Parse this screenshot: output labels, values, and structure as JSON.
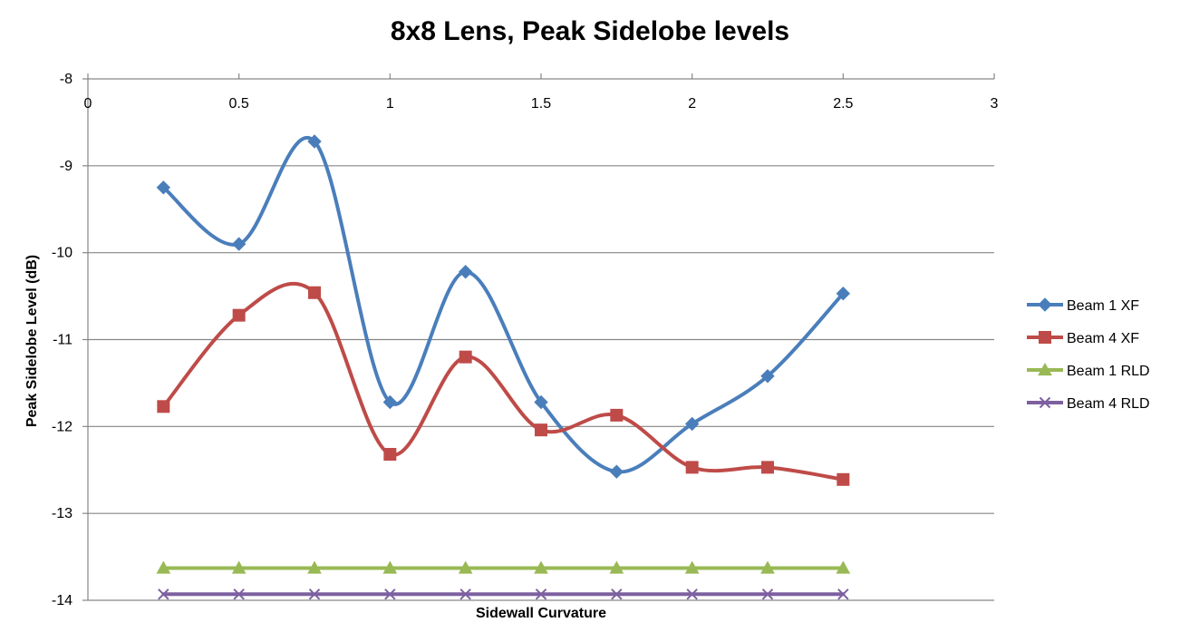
{
  "chart_data": {
    "type": "line",
    "title": "8x8 Lens, Peak Sidelobe levels",
    "xlabel": "Sidewall Curvature",
    "ylabel": "Peak Sidelobe Level (dB)",
    "xlim": [
      0,
      3
    ],
    "ylim": [
      -14,
      -8
    ],
    "x_ticks": [
      "0",
      "0.5",
      "1",
      "1.5",
      "2",
      "2.5",
      "3"
    ],
    "y_ticks": [
      "-8",
      "-9",
      "-10",
      "-11",
      "-12",
      "-13",
      "-14"
    ],
    "x_tick_values": [
      0,
      0.5,
      1,
      1.5,
      2,
      2.5,
      3
    ],
    "y_tick_values": [
      -8,
      -9,
      -10,
      -11,
      -12,
      -13,
      -14
    ],
    "x_axis_position": "top",
    "grid": "horizontal",
    "legend_position": "right",
    "smoothed": true,
    "x": [
      0.25,
      0.5,
      0.75,
      1.0,
      1.25,
      1.5,
      1.75,
      2.0,
      2.25,
      2.5
    ],
    "series": [
      {
        "name": "Beam 1 XF",
        "color": "#4a7ebb",
        "marker": "diamond",
        "values": [
          -9.25,
          -9.9,
          -8.72,
          -11.72,
          -10.22,
          -11.72,
          -12.52,
          -11.97,
          -11.42,
          -10.47
        ]
      },
      {
        "name": "Beam 4 XF",
        "color": "#be4b48",
        "marker": "square",
        "values": [
          -11.77,
          -10.72,
          -10.46,
          -12.32,
          -11.2,
          -12.04,
          -11.87,
          -12.47,
          -12.47,
          -12.61
        ]
      },
      {
        "name": "Beam 1 RLD",
        "color": "#98b954",
        "marker": "triangle",
        "values": [
          -13.63,
          -13.63,
          -13.63,
          -13.63,
          -13.63,
          -13.63,
          -13.63,
          -13.63,
          -13.63,
          -13.63
        ]
      },
      {
        "name": "Beam 4 RLD",
        "color": "#7d60a0",
        "marker": "x",
        "values": [
          -13.93,
          -13.93,
          -13.93,
          -13.93,
          -13.93,
          -13.93,
          -13.93,
          -13.93,
          -13.93,
          -13.93
        ]
      }
    ]
  }
}
